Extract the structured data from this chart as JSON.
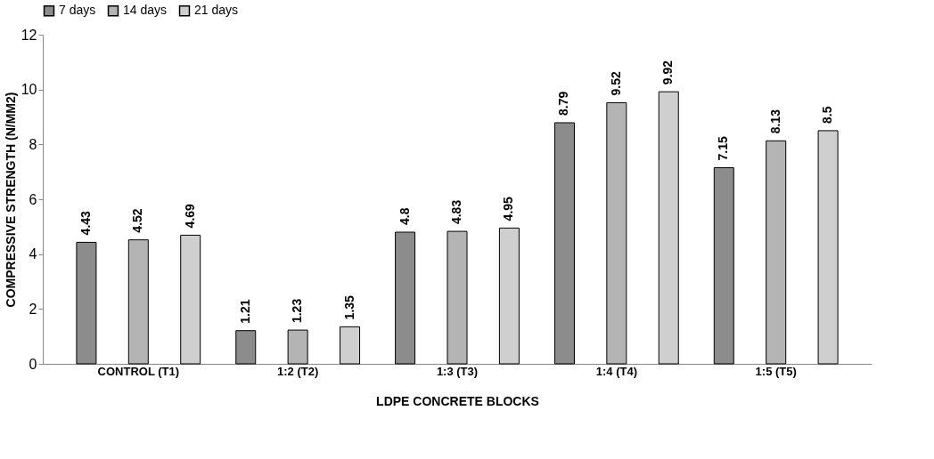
{
  "chart_data": {
    "type": "bar",
    "xlabel": "LDPE  CONCRETE BLOCKS",
    "ylabel": "COMPRESSIVE STRENGTH (N/MM2)",
    "categories": [
      "CONTROL (T1)",
      "1:2 (T2)",
      "1:3 (T3)",
      "1:4 (T4)",
      "1:5 (T5)"
    ],
    "series": [
      {
        "name": "7 days",
        "color": "#8c8c8c",
        "values": [
          4.43,
          1.21,
          4.8,
          8.79,
          7.15
        ]
      },
      {
        "name": "14 days",
        "color": "#b4b4b4",
        "values": [
          4.52,
          1.23,
          4.83,
          9.52,
          8.13
        ]
      },
      {
        "name": "21 days",
        "color": "#cfcfcf",
        "values": [
          4.69,
          1.35,
          4.95,
          9.92,
          8.5
        ]
      }
    ],
    "ylim": [
      0,
      12
    ],
    "yticks": [
      0,
      2,
      4,
      6,
      8,
      10,
      12
    ],
    "data_labels": true,
    "grid": false,
    "legend": "top"
  }
}
